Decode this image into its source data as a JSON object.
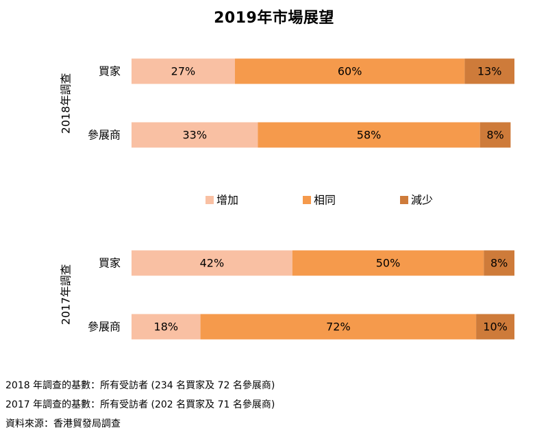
{
  "chart_data": {
    "type": "bar",
    "stacked": true,
    "orientation": "horizontal",
    "title": "2019年市場展望",
    "colors": {
      "increase": "#F9C0A3",
      "same": "#F59A4C",
      "decrease": "#CE7B3A"
    },
    "legend": {
      "placement": "center",
      "items": [
        {
          "label": "增加",
          "color": "#F9C0A3"
        },
        {
          "label": "相同",
          "color": "#F59A4C"
        },
        {
          "label": "減少",
          "color": "#CE7B3A"
        }
      ]
    },
    "groups": [
      {
        "label": "2018年調查",
        "categories": [
          "買家",
          "參展商"
        ],
        "series": [
          {
            "name": "增加",
            "values": [
              27,
              33
            ],
            "labels": [
              "27%",
              "33%"
            ]
          },
          {
            "name": "相同",
            "values": [
              60,
              58
            ],
            "labels": [
              "60%",
              "58%"
            ]
          },
          {
            "name": "減少",
            "values": [
              13,
              8
            ],
            "labels": [
              "13%",
              "8%"
            ]
          }
        ]
      },
      {
        "label": "2017年調查",
        "categories": [
          "買家",
          "參展商"
        ],
        "series": [
          {
            "name": "增加",
            "values": [
              42,
              18
            ],
            "labels": [
              "42%",
              "18%"
            ]
          },
          {
            "name": "相同",
            "values": [
              50,
              72
            ],
            "labels": [
              "50%",
              "72%"
            ]
          },
          {
            "name": "減少",
            "values": [
              8,
              10
            ],
            "labels": [
              "8%",
              "10%"
            ]
          }
        ]
      }
    ],
    "xlim": [
      0,
      100
    ],
    "grid": false
  },
  "notes": [
    "2018 年調查的基數：所有受訪者 (234 名買家及 72 名參展商)",
    "2017 年調查的基數：所有受訪者 (202 名買家及 71 名參展商)",
    "資料來源：香港貿發局調查"
  ]
}
